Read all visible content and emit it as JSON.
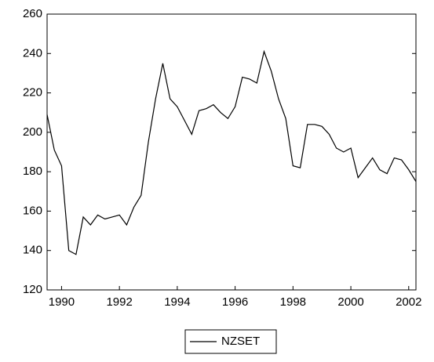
{
  "chart_data": {
    "type": "line",
    "x": [
      1989.5,
      1989.75,
      1990,
      1990.25,
      1990.5,
      1990.75,
      1991,
      1991.25,
      1991.5,
      1991.75,
      1992,
      1992.25,
      1992.5,
      1992.75,
      1993,
      1993.25,
      1993.5,
      1993.75,
      1994,
      1994.25,
      1994.5,
      1994.75,
      1995,
      1995.25,
      1995.5,
      1995.75,
      1996,
      1996.25,
      1996.5,
      1996.75,
      1997,
      1997.25,
      1997.5,
      1997.75,
      1998,
      1998.25,
      1998.5,
      1998.75,
      1999,
      1999.25,
      1999.5,
      1999.75,
      2000,
      2000.25,
      2000.5,
      2000.75,
      2001,
      2001.25,
      2001.5,
      2001.75,
      2002,
      2002.25
    ],
    "series": [
      {
        "name": "NZSET",
        "color": "#000000",
        "values": [
          209,
          191,
          183,
          140,
          138,
          157,
          153,
          158,
          156,
          157,
          158,
          153,
          162,
          168,
          195,
          217,
          235,
          217,
          213,
          206,
          199,
          211,
          212,
          214,
          210,
          207,
          213,
          228,
          227,
          225,
          241,
          231,
          217,
          207,
          183,
          182,
          204,
          204,
          203,
          199,
          192,
          190,
          192,
          177,
          182,
          187,
          181,
          179,
          187,
          186,
          181,
          175
        ]
      }
    ],
    "xlim": [
      1989.5,
      2002.25
    ],
    "xticks": [
      1990,
      1992,
      1994,
      1996,
      1998,
      2000,
      2002
    ],
    "ylim": [
      120,
      260
    ],
    "yticks": [
      120,
      140,
      160,
      180,
      200,
      220,
      240,
      260
    ],
    "grid": false,
    "legend": "bottom"
  }
}
